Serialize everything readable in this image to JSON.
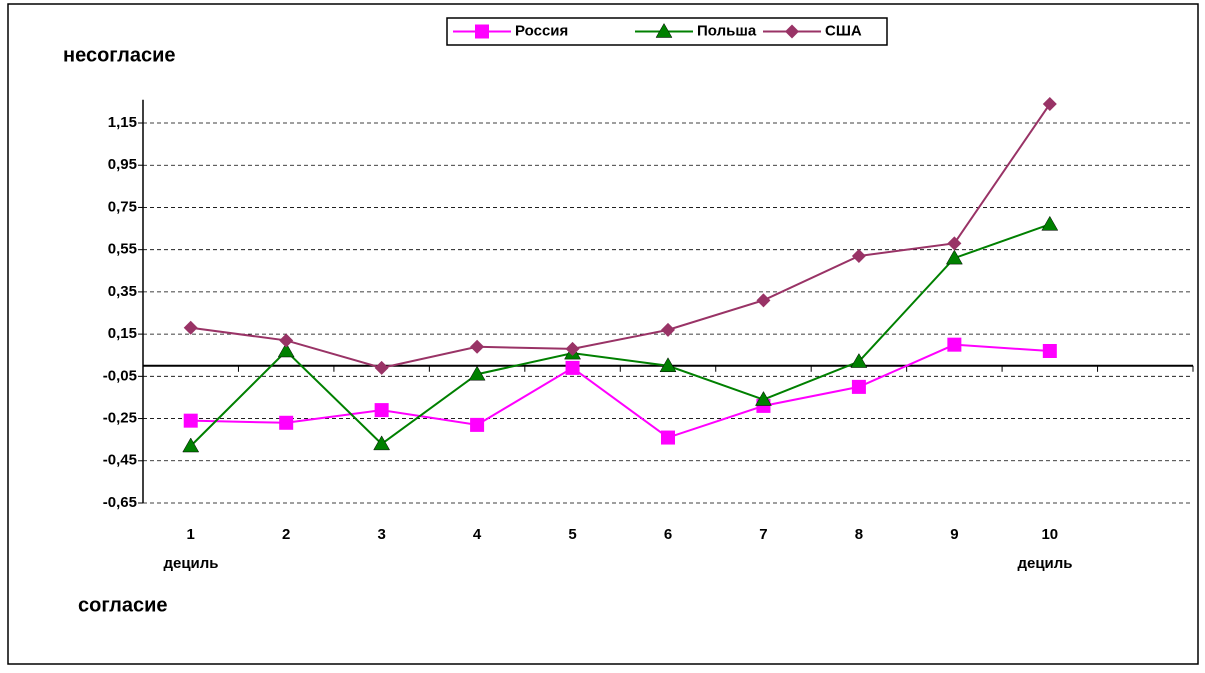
{
  "chart_data": {
    "type": "line",
    "categories": [
      "1",
      "2",
      "3",
      "4",
      "5",
      "6",
      "7",
      "8",
      "9",
      "10",
      null
    ],
    "series": [
      {
        "name": "Россия",
        "color": "#ff00ff",
        "marker": "square",
        "values": [
          -0.26,
          -0.27,
          -0.21,
          -0.28,
          -0.01,
          -0.34,
          -0.19,
          -0.1,
          0.1,
          0.07,
          null
        ]
      },
      {
        "name": "Польша",
        "color": "#008000",
        "marker": "triangle",
        "values": [
          -0.38,
          0.07,
          -0.37,
          -0.04,
          0.06,
          0.0,
          -0.16,
          0.02,
          0.51,
          0.67,
          null
        ]
      },
      {
        "name": "США",
        "color": "#993366",
        "marker": "diamond",
        "values": [
          0.18,
          0.12,
          -0.01,
          0.09,
          0.08,
          0.17,
          0.31,
          0.52,
          0.58,
          1.24,
          null
        ]
      }
    ],
    "ylim": [
      -0.65,
      1.26
    ],
    "yticks": [
      {
        "value": -0.65,
        "label": "-0,65"
      },
      {
        "value": -0.45,
        "label": "-0,45"
      },
      {
        "value": -0.25,
        "label": "-0,25"
      },
      {
        "value": -0.05,
        "label": "-0,05"
      },
      {
        "value": 0.15,
        "label": "0,15"
      },
      {
        "value": 0.35,
        "label": "0,35"
      },
      {
        "value": 0.55,
        "label": "0,55"
      },
      {
        "value": 0.75,
        "label": "0,75"
      },
      {
        "value": 0.95,
        "label": "0,95"
      },
      {
        "value": 1.15,
        "label": "1,15"
      }
    ],
    "grid": true,
    "legend": "top",
    "annotations": [
      "несогласие",
      "согласие",
      "дециль",
      "дециль"
    ]
  }
}
